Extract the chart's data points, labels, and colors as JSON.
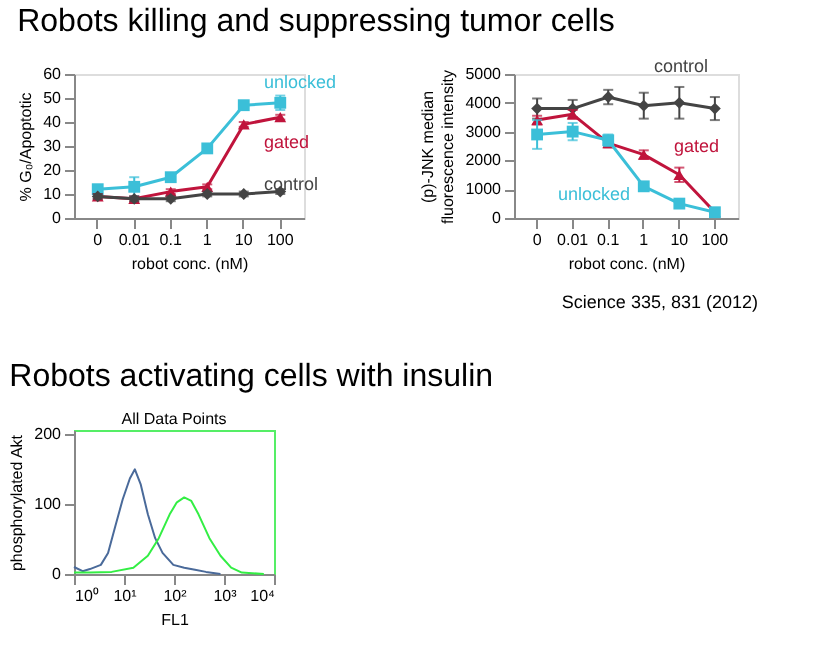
{
  "chart_data": [
    {
      "type": "line",
      "title": "Robots killing and suppressing tumor cells",
      "xlabel": "robot conc. (nM)",
      "ylabel": "% G₀/Apoptotic",
      "categories": [
        "0",
        "0.01",
        "0.1",
        "1",
        "10",
        "100"
      ],
      "ylim": [
        0,
        60
      ],
      "yticks": [
        0,
        10,
        20,
        30,
        40,
        50,
        60
      ],
      "grid": false,
      "legend": false,
      "line_style": "solid",
      "series": [
        {
          "name": "unlocked",
          "color": "#3bbfd8",
          "marker": "square",
          "values": [
            12,
            13,
            17,
            29,
            47,
            48
          ],
          "errors": [
            1,
            4,
            1,
            1,
            1,
            3
          ]
        },
        {
          "name": "gated",
          "color": "#c0143c",
          "marker": "triangle",
          "values": [
            9,
            8,
            11,
            13,
            39,
            42
          ],
          "errors": [
            1,
            1,
            1,
            1,
            1,
            1
          ]
        },
        {
          "name": "control",
          "color": "#444444",
          "marker": "diamond",
          "values": [
            9,
            8,
            8,
            10,
            10,
            11
          ],
          "errors": [
            1,
            1,
            1,
            1,
            1,
            1
          ]
        }
      ]
    },
    {
      "type": "line",
      "xlabel": "robot conc. (nM)",
      "ylabel": "(p)-JNK median fluorescence intensity",
      "categories": [
        "0",
        "0.01",
        "0.1",
        "1",
        "10",
        "100"
      ],
      "ylim": [
        0,
        5000
      ],
      "yticks": [
        0,
        1000,
        2000,
        3000,
        4000,
        5000
      ],
      "grid": false,
      "legend": false,
      "line_style": "solid",
      "annotations": [
        "Science 335, 831 (2012)"
      ],
      "series": [
        {
          "name": "control",
          "color": "#444444",
          "marker": "diamond",
          "values": [
            3800,
            3800,
            4200,
            3900,
            4000,
            3800
          ],
          "errors": [
            350,
            300,
            250,
            450,
            550,
            400
          ]
        },
        {
          "name": "gated",
          "color": "#c0143c",
          "marker": "triangle",
          "values": [
            3400,
            3600,
            2600,
            2200,
            1500,
            200
          ],
          "errors": [
            150,
            150,
            150,
            150,
            250,
            100
          ]
        },
        {
          "name": "unlocked",
          "color": "#3bbfd8",
          "marker": "square",
          "values": [
            2900,
            3000,
            2700,
            1100,
            500,
            200
          ],
          "errors": [
            500,
            300,
            200,
            100,
            100,
            100
          ]
        }
      ]
    },
    {
      "type": "line",
      "title": "Robots activating cells with insulin",
      "xlabel": "FL1",
      "ylabel": "phosphorylated Akt",
      "log": "x",
      "xlim": [
        1,
        10000
      ],
      "xticks": [
        {
          "value": 1,
          "label": "10⁰"
        },
        {
          "value": 10,
          "label": "10¹"
        },
        {
          "value": 100,
          "label": "10²"
        },
        {
          "value": 1000,
          "label": "10³"
        },
        {
          "value": 10000,
          "label": "10⁴"
        }
      ],
      "ylim": [
        0,
        205
      ],
      "yticks": [
        0,
        100,
        200
      ],
      "grid": false,
      "legend": false,
      "marker": "none",
      "line_style": "solid",
      "annotations": [
        "All Data Points"
      ],
      "series": [
        {
          "color": "#4a6a9a",
          "x": [
            1,
            1.49,
            2.08,
            3.44,
            4.8,
            6.7,
            9.4,
            13.1,
            16.5,
            21.5,
            30,
            42,
            59,
            97,
            160,
            263,
            436,
            850
          ],
          "values": [
            10,
            4,
            7,
            13,
            30,
            68,
            106,
            136,
            149,
            128,
            85,
            51,
            30,
            13,
            9,
            6,
            3,
            0
          ]
        },
        {
          "color": "#33ee44",
          "x": [
            1,
            2.08,
            5.66,
            15.4,
            30,
            49.6,
            82,
            114,
            160,
            222,
            309,
            511,
            850,
            1390,
            2270,
            6260
          ],
          "values": [
            2,
            2,
            3,
            9,
            26,
            51,
            85,
            102,
            109,
            104,
            85,
            51,
            26,
            9,
            2,
            0
          ]
        }
      ]
    }
  ]
}
